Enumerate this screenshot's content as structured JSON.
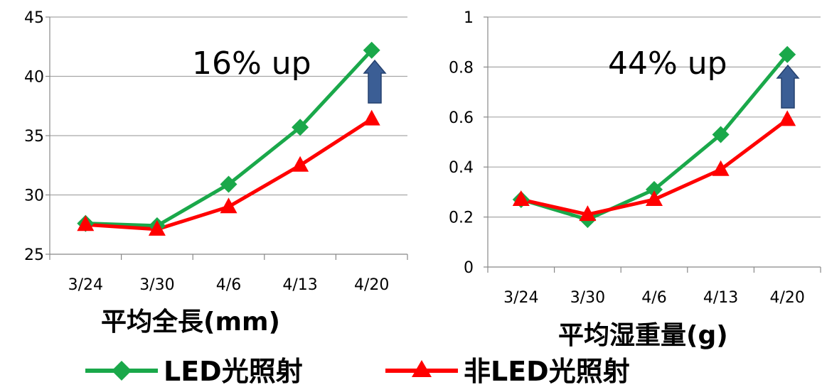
{
  "chart_data": [
    {
      "type": "line",
      "title": "平均全長(mm)",
      "categories": [
        "3/24",
        "3/30",
        "4/6",
        "4/13",
        "4/20"
      ],
      "ylim": [
        25,
        45
      ],
      "yticks": [
        25,
        30,
        35,
        40,
        45
      ],
      "grid": true,
      "annotation": "16% up",
      "series": [
        {
          "name": "LED光照射",
          "color": "#1aa84a",
          "marker": "diamond",
          "values": [
            27.6,
            27.4,
            30.9,
            35.7,
            42.2
          ]
        },
        {
          "name": "非LED光照射",
          "color": "#ff0000",
          "marker": "triangle",
          "values": [
            27.5,
            27.1,
            29.0,
            32.5,
            36.4
          ]
        }
      ]
    },
    {
      "type": "line",
      "title": "平均湿重量(g)",
      "categories": [
        "3/24",
        "3/30",
        "4/6",
        "4/13",
        "4/20"
      ],
      "ylim": [
        0,
        1
      ],
      "yticks": [
        0,
        0.2,
        0.4,
        0.6,
        0.8,
        1
      ],
      "grid": true,
      "annotation": "44% up",
      "series": [
        {
          "name": "LED光照射",
          "color": "#1aa84a",
          "marker": "diamond",
          "values": [
            0.27,
            0.19,
            0.31,
            0.53,
            0.85
          ]
        },
        {
          "name": "非LED光照射",
          "color": "#ff0000",
          "marker": "triangle",
          "values": [
            0.27,
            0.21,
            0.27,
            0.39,
            0.59
          ]
        }
      ]
    }
  ],
  "legend": {
    "items": [
      {
        "label": "LED光照射",
        "color": "#1aa84a",
        "marker": "diamond"
      },
      {
        "label": "非LED光照射",
        "color": "#ff0000",
        "marker": "triangle"
      }
    ]
  },
  "colors": {
    "arrow": "#3b5e95",
    "arrow_stroke": "#24406e",
    "grid": "#a6a6a6",
    "axis": "#888888"
  }
}
